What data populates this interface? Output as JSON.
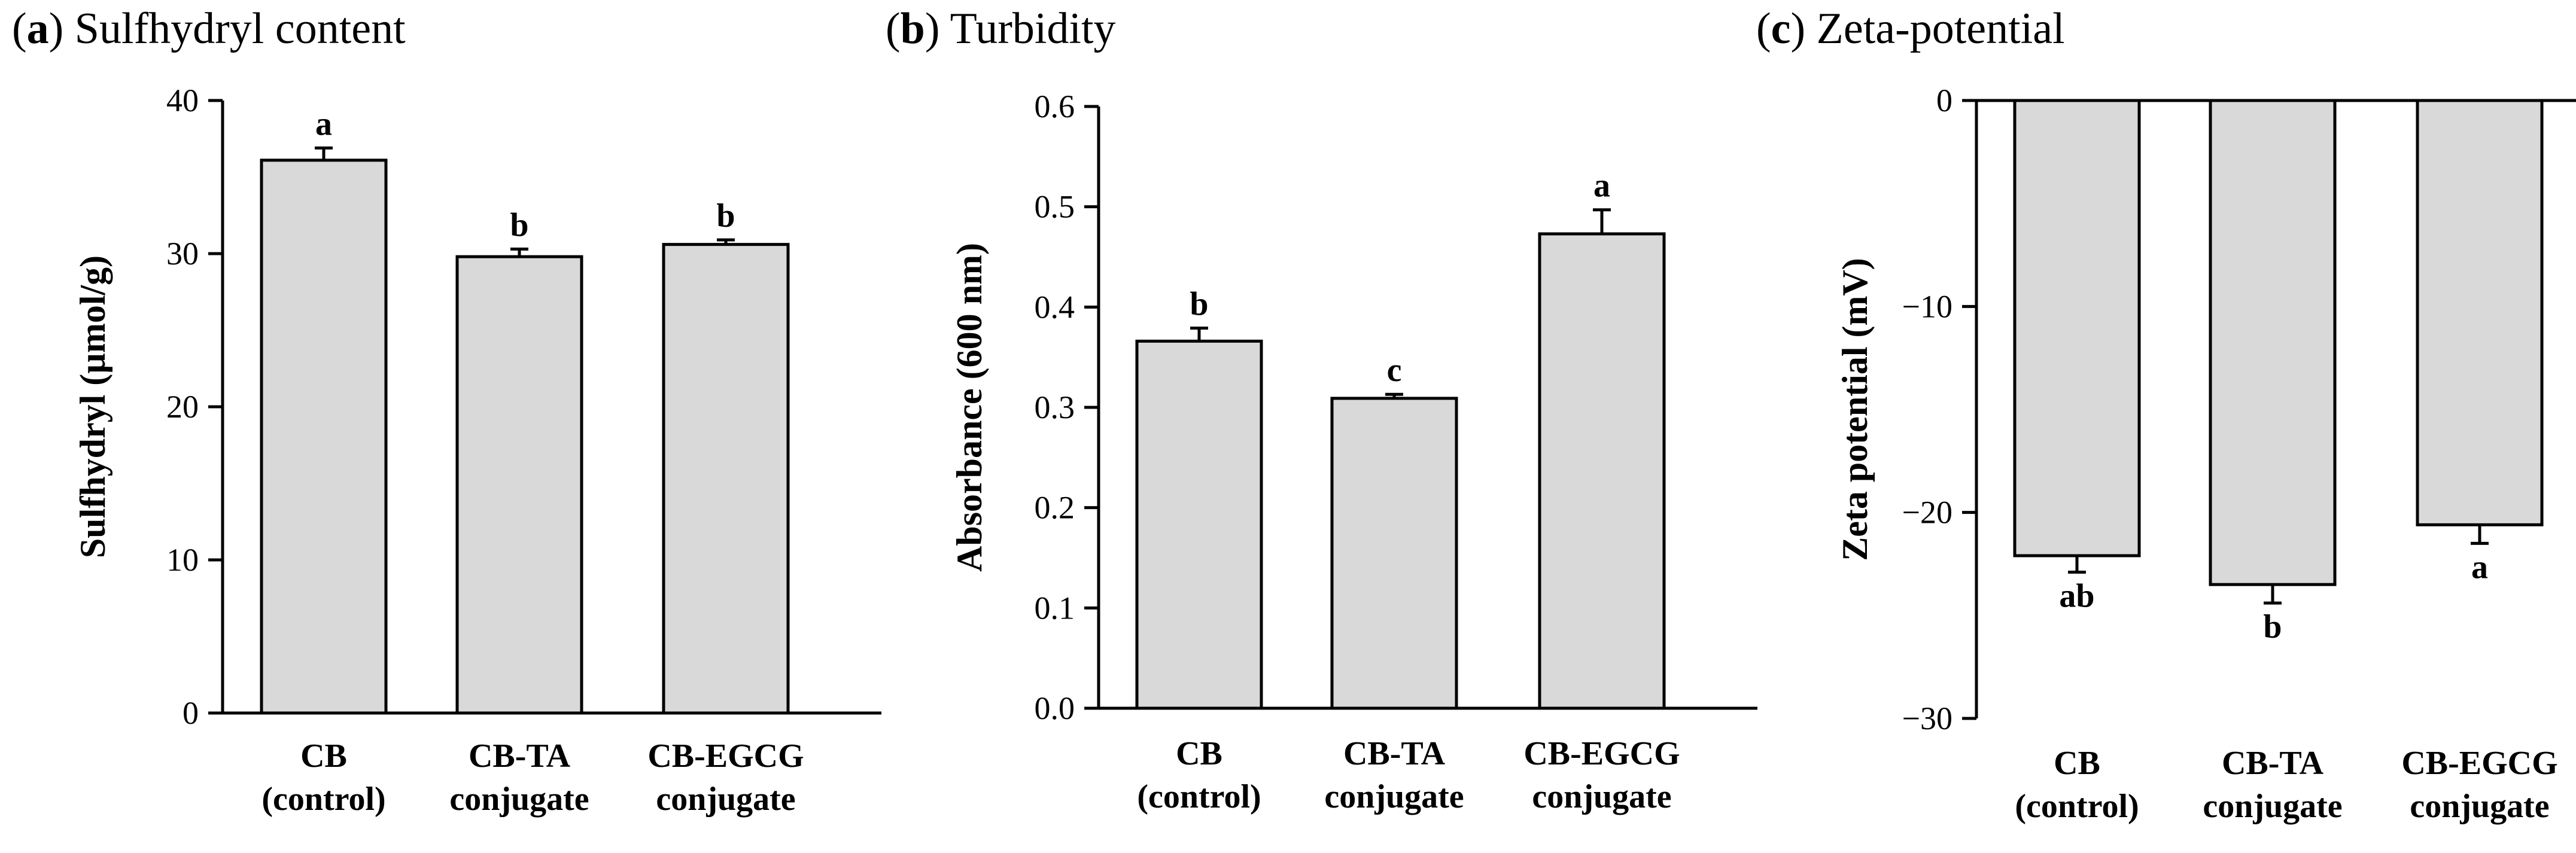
{
  "chart_data": [
    {
      "type": "bar",
      "panel_letter": "a",
      "title": "Sulfhydryl content",
      "ylabel": "Sulfhydryl (µmol/g)",
      "ylim": [
        0,
        40
      ],
      "yticks": [
        0,
        10,
        20,
        30,
        40
      ],
      "ytick_labels": [
        "0",
        "10",
        "20",
        "30",
        "40"
      ],
      "categories": [
        [
          "CB",
          "(control)"
        ],
        [
          "CB-TA",
          "conjugate"
        ],
        [
          "CB-EGCG",
          "conjugate"
        ]
      ],
      "values": [
        36.1,
        29.8,
        30.6
      ],
      "errors": [
        0.8,
        0.5,
        0.3
      ],
      "significance": [
        "a",
        "b",
        "b"
      ]
    },
    {
      "type": "bar",
      "panel_letter": "b",
      "title": "Turbidity",
      "ylabel": "Absorbance (600 nm)",
      "ylim": [
        0,
        0.6
      ],
      "yticks": [
        0,
        0.1,
        0.2,
        0.3,
        0.4,
        0.5,
        0.6
      ],
      "ytick_labels": [
        "0.0",
        "0.1",
        "0.2",
        "0.3",
        "0.4",
        "0.5",
        "0.6"
      ],
      "categories": [
        [
          "CB",
          "(control)"
        ],
        [
          "CB-TA",
          "conjugate"
        ],
        [
          "CB-EGCG",
          "conjugate"
        ]
      ],
      "values": [
        0.366,
        0.309,
        0.473
      ],
      "errors": [
        0.013,
        0.004,
        0.024
      ],
      "significance": [
        "b",
        "c",
        "a"
      ]
    },
    {
      "type": "bar",
      "panel_letter": "c",
      "title": "Zeta-potential",
      "ylabel": "Zeta potential (mV)",
      "ylim": [
        -30,
        0
      ],
      "yticks": [
        0,
        -10,
        -20,
        -30
      ],
      "ytick_labels": [
        "0",
        "−10",
        "−20",
        "−30"
      ],
      "categories": [
        [
          "CB",
          "(control)"
        ],
        [
          "CB-TA",
          "conjugate"
        ],
        [
          "CB-EGCG",
          "conjugate"
        ]
      ],
      "values": [
        -22.1,
        -23.5,
        -20.6
      ],
      "errors": [
        0.8,
        0.9,
        0.9
      ],
      "significance": [
        "ab",
        "b",
        "a"
      ]
    }
  ]
}
